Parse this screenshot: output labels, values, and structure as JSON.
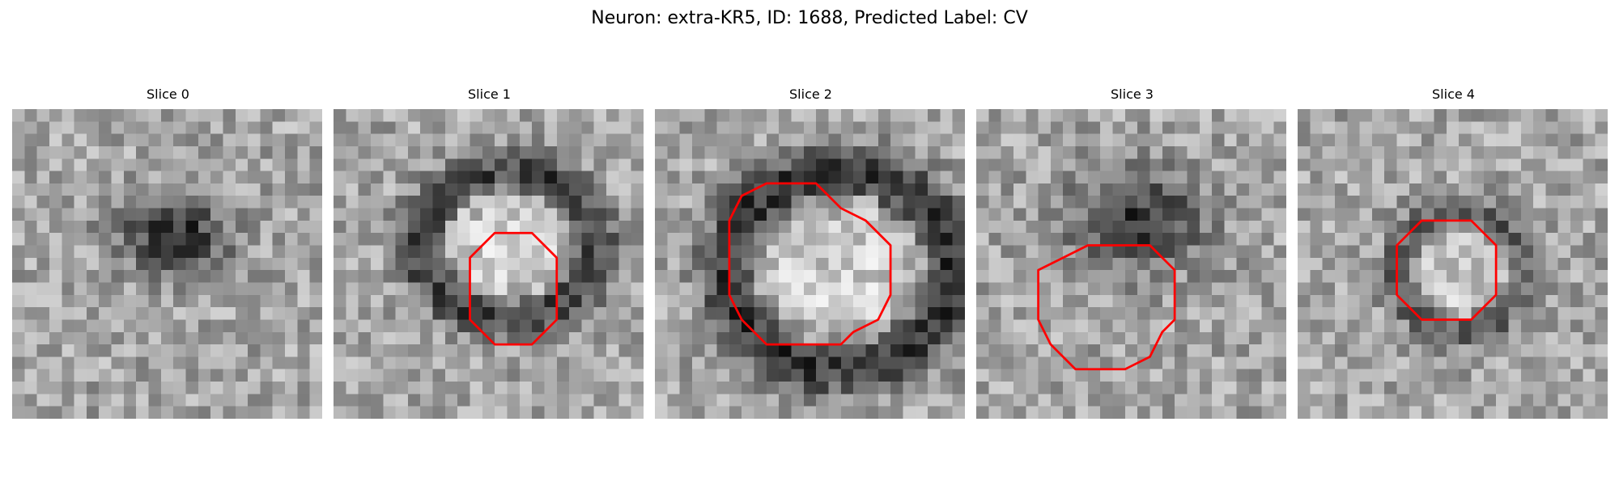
{
  "title": "Neuron: extra-KR5, ID: 1688, Predicted Label: CV",
  "contour_color": "#ff0000",
  "slices": [
    {
      "label": "Slice 0",
      "blob": {
        "cx": 13,
        "cy": 10,
        "rx": 5.5,
        "ry": 4,
        "depth": 120,
        "ring": false
      },
      "contour": []
    },
    {
      "label": "Slice 1",
      "blob": {
        "cx": 14,
        "cy": 11,
        "rx": 7,
        "ry": 6,
        "depth": 100,
        "ring": true
      },
      "contour": [
        [
          13,
          10
        ],
        [
          16,
          10
        ],
        [
          17,
          11
        ],
        [
          18,
          12
        ],
        [
          18,
          17
        ],
        [
          17,
          18
        ],
        [
          16,
          19
        ],
        [
          13,
          19
        ],
        [
          12,
          18
        ],
        [
          11,
          17
        ],
        [
          11,
          12
        ],
        [
          12,
          11
        ]
      ]
    },
    {
      "label": "Slice 2",
      "blob": {
        "cx": 15,
        "cy": 13,
        "rx": 9,
        "ry": 8,
        "depth": 110,
        "ring": true
      },
      "contour": [
        [
          9,
          6
        ],
        [
          13,
          6
        ],
        [
          14,
          7
        ],
        [
          15,
          8
        ],
        [
          17,
          9
        ],
        [
          19,
          11
        ],
        [
          19,
          15
        ],
        [
          18,
          17
        ],
        [
          16,
          18
        ],
        [
          15,
          19
        ],
        [
          9,
          19
        ],
        [
          7,
          17
        ],
        [
          6,
          15
        ],
        [
          6,
          9
        ],
        [
          7,
          7
        ]
      ]
    },
    {
      "label": "Slice 3",
      "blob": {
        "cx": 13,
        "cy": 9,
        "rx": 7,
        "ry": 5,
        "depth": 110,
        "ring": false
      },
      "contour": [
        [
          10,
          11
        ],
        [
          14,
          11
        ],
        [
          16,
          13
        ],
        [
          16,
          17
        ],
        [
          15,
          18
        ],
        [
          14,
          20
        ],
        [
          12,
          21
        ],
        [
          8,
          21
        ],
        [
          6,
          19
        ],
        [
          5,
          17
        ],
        [
          5,
          13
        ],
        [
          7,
          12
        ],
        [
          9,
          11
        ]
      ]
    },
    {
      "label": "Slice 4",
      "blob": {
        "cx": 13,
        "cy": 13,
        "rx": 5,
        "ry": 5,
        "depth": 70,
        "ring": true
      },
      "contour": [
        [
          10,
          9
        ],
        [
          14,
          9
        ],
        [
          15,
          10
        ],
        [
          16,
          11
        ],
        [
          16,
          15
        ],
        [
          15,
          16
        ],
        [
          14,
          17
        ],
        [
          10,
          17
        ],
        [
          9,
          16
        ],
        [
          8,
          15
        ],
        [
          8,
          11
        ],
        [
          9,
          10
        ]
      ]
    }
  ]
}
